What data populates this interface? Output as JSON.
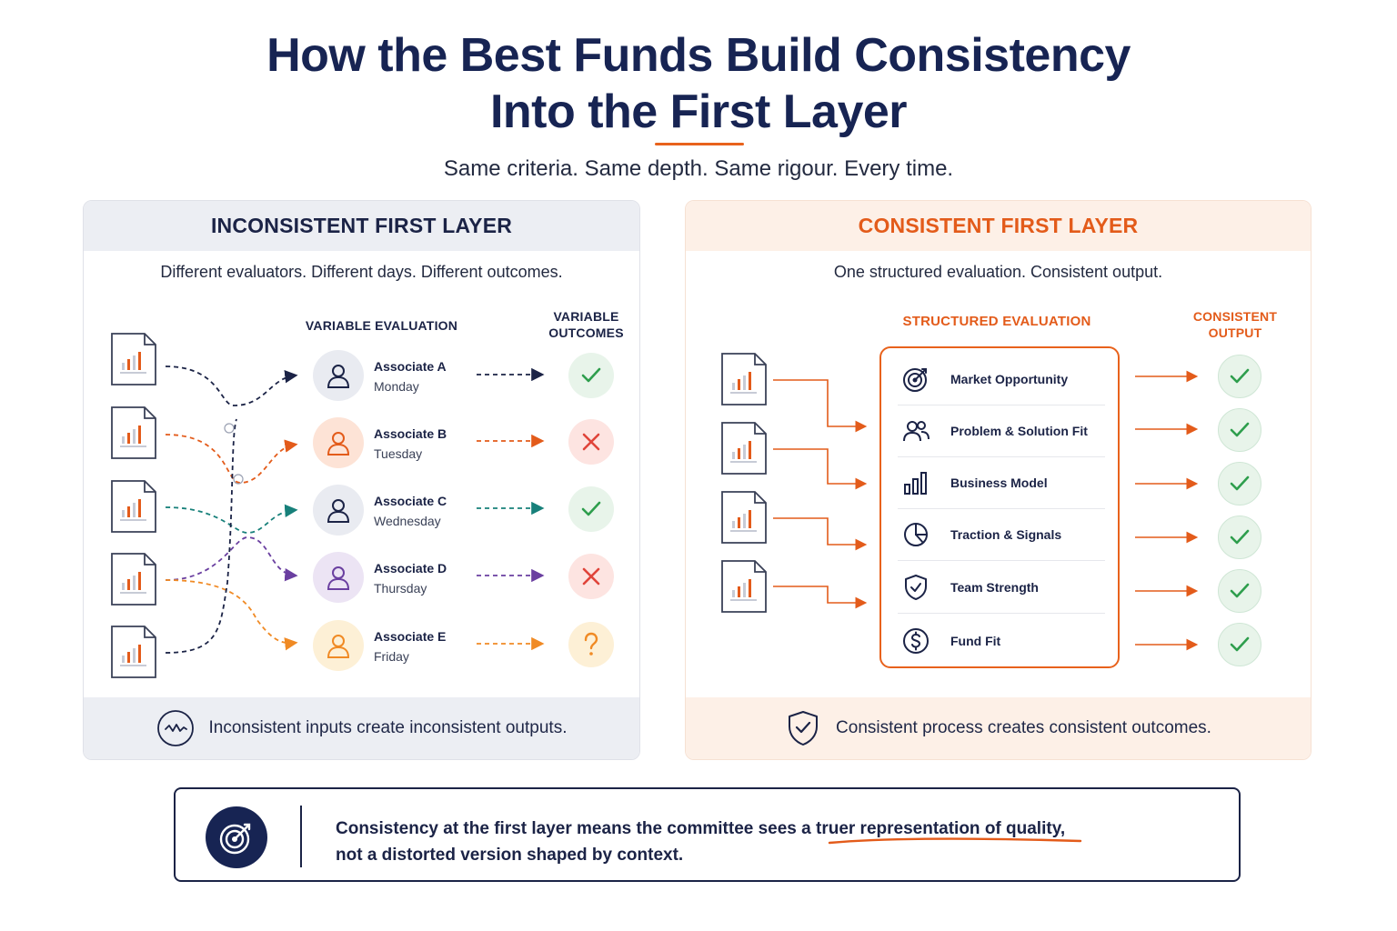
{
  "title": {
    "line1": "How the Best Funds Build Consistency",
    "line2": "Into the First Layer"
  },
  "subtitle": "Same criteria. Same depth. Same rigour. Every time.",
  "left_panel": {
    "heading": "INCONSISTENT FIRST LAYER",
    "subheading": "Different evaluators. Different days. Different outcomes.",
    "col_evaluation": "VARIABLE EVALUATION",
    "col_outcomes_line1": "VARIABLE",
    "col_outcomes_line2": "OUTCOMES",
    "associates": [
      {
        "name": "Associate A",
        "day": "Monday",
        "color": "#1b2346",
        "bg": "#e9ebf1",
        "outcome": "check"
      },
      {
        "name": "Associate B",
        "day": "Tuesday",
        "color": "#e35b1a",
        "bg": "#fde3d6",
        "outcome": "cross"
      },
      {
        "name": "Associate C",
        "day": "Wednesday",
        "color": "#1b2346",
        "bg": "#e9ebf1",
        "outcome": "check"
      },
      {
        "name": "Associate D",
        "day": "Thursday",
        "color": "#6a3fa0",
        "bg": "#ece4f4",
        "outcome": "cross"
      },
      {
        "name": "Associate E",
        "day": "Friday",
        "color": "#f08a24",
        "bg": "#fdf0d6",
        "outcome": "question"
      }
    ],
    "footer": "Inconsistent inputs create inconsistent outputs.",
    "footer_icon": "wave-icon"
  },
  "right_panel": {
    "heading": "CONSISTENT FIRST LAYER",
    "subheading": "One structured evaluation. Consistent output.",
    "col_evaluation": "STRUCTURED EVALUATION",
    "col_output_line1": "CONSISTENT",
    "col_output_line2": "OUTPUT",
    "criteria": [
      {
        "label": "Market Opportunity",
        "icon": "target-icon"
      },
      {
        "label": "Problem & Solution Fit",
        "icon": "people-icon"
      },
      {
        "label": "Business Model",
        "icon": "bar-chart-icon"
      },
      {
        "label": "Traction & Signals",
        "icon": "pie-chart-icon"
      },
      {
        "label": "Team Strength",
        "icon": "shield-check-icon"
      },
      {
        "label": "Fund Fit",
        "icon": "dollar-icon"
      }
    ],
    "footer": "Consistent process creates consistent outcomes.",
    "footer_icon": "shield-check-icon"
  },
  "callout": {
    "line1": "Consistency at the first layer means the committee sees a truer representation of quality,",
    "line2": "not a distorted version shaped by context.",
    "icon": "target-icon"
  },
  "colors": {
    "navy": "#172453",
    "orange": "#e35b1a",
    "check_green": "#2e9e4d",
    "cross_red": "#e0443a",
    "question_orange": "#f08a24"
  }
}
